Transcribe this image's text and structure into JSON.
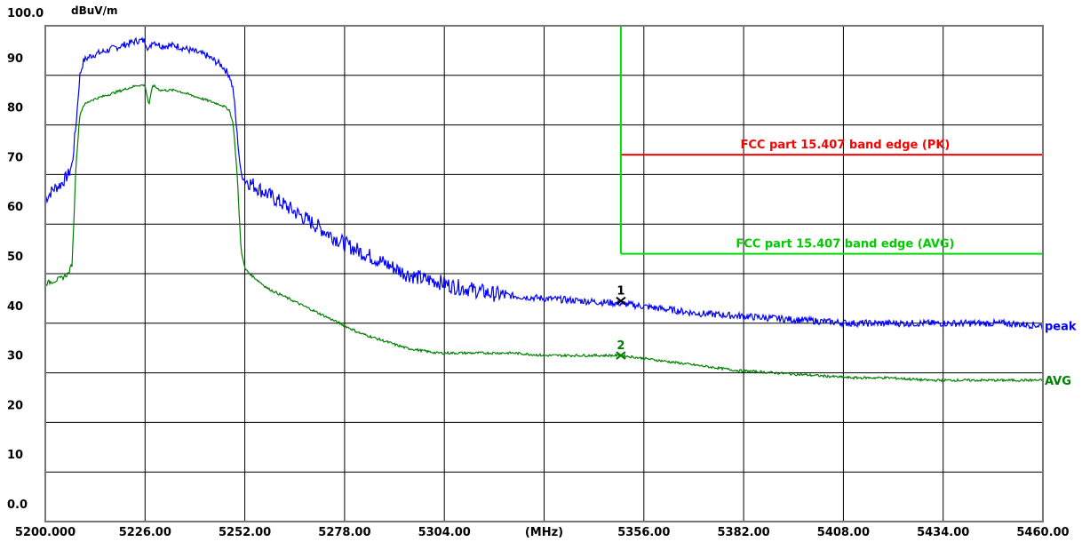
{
  "chart_data": {
    "type": "line",
    "ylabel": "dBuV/m",
    "xunit": "(MHz)",
    "xlim": [
      5200,
      5460
    ],
    "ylim": [
      0,
      100
    ],
    "grid": true,
    "y_ticks": [
      "0.0",
      "10",
      "20",
      "30",
      "40",
      "50",
      "60",
      "70",
      "80",
      "90",
      "100.0"
    ],
    "x_ticks": [
      "5200.000",
      "5226.00",
      "5252.00",
      "5278.00",
      "5304.00",
      "(MHz)",
      "5356.00",
      "5382.00",
      "5408.00",
      "5434.00",
      "5460.00"
    ],
    "limit_lines": [
      {
        "label": "FCC part 15.407 band edge (PK)",
        "color": "#ff0000",
        "x_start": 5350,
        "x_end": 5460,
        "y": 74
      },
      {
        "label": "FCC part 15.407 band edge (AVG)",
        "color": "#00dd00",
        "x_start": 5350,
        "x_end": 5460,
        "y": 54
      },
      {
        "label": "",
        "color": "#00dd00",
        "x_start": 5200,
        "x_end": 5350,
        "y": 100
      }
    ],
    "limit_vertical": {
      "x": 5350,
      "y_from": 100,
      "y_to": 54,
      "color": "#00dd00"
    },
    "series": [
      {
        "name": "peak",
        "color": "#0000ff",
        "x": [
          5200,
          5202,
          5204,
          5206,
          5207,
          5208,
          5209,
          5210,
          5212,
          5216,
          5220,
          5224,
          5226,
          5227,
          5228,
          5230,
          5234,
          5238,
          5242,
          5246,
          5248,
          5249,
          5250,
          5251,
          5252,
          5254,
          5258,
          5262,
          5266,
          5270,
          5274,
          5278,
          5282,
          5286,
          5290,
          5294,
          5298,
          5302,
          5306,
          5310,
          5316,
          5322,
          5330,
          5340,
          5350,
          5360,
          5370,
          5380,
          5390,
          5400,
          5410,
          5420,
          5430,
          5440,
          5450,
          5460
        ],
        "y": [
          65,
          67,
          68,
          70,
          72,
          80,
          90,
          93,
          94,
          95,
          96,
          97,
          97,
          95,
          97,
          96,
          96,
          95,
          94,
          92,
          90,
          87,
          78,
          70,
          69,
          68,
          66,
          64,
          62,
          60,
          58,
          56,
          54.5,
          53,
          51.5,
          50,
          49,
          48.5,
          47.5,
          47,
          46,
          45.5,
          45,
          44.5,
          44,
          43,
          42,
          41.5,
          41,
          40.5,
          40,
          40,
          40,
          40,
          40,
          39.5
        ]
      },
      {
        "name": "AVG",
        "color": "#008000",
        "x": [
          5200,
          5202,
          5204,
          5206,
          5207,
          5208,
          5209,
          5210,
          5212,
          5216,
          5220,
          5224,
          5226,
          5227,
          5228,
          5230,
          5234,
          5238,
          5242,
          5246,
          5248,
          5249,
          5250,
          5251,
          5252,
          5254,
          5258,
          5262,
          5266,
          5270,
          5274,
          5278,
          5282,
          5286,
          5290,
          5294,
          5298,
          5302,
          5306,
          5310,
          5316,
          5322,
          5330,
          5340,
          5350,
          5360,
          5370,
          5380,
          5390,
          5400,
          5410,
          5420,
          5430,
          5440,
          5450,
          5460
        ],
        "y": [
          48,
          48.5,
          49,
          50,
          52,
          72,
          82,
          84,
          85,
          86,
          87,
          88,
          88,
          84,
          88,
          87,
          87,
          86,
          85,
          84,
          83,
          80,
          70,
          55,
          51,
          49.5,
          47,
          45.5,
          44,
          42.5,
          41,
          39.5,
          38,
          37,
          36,
          35,
          34.5,
          34,
          34,
          34,
          34,
          34,
          33.5,
          33.5,
          33.5,
          32.5,
          31.5,
          30.5,
          30,
          29.5,
          29,
          29,
          28.5,
          28.5,
          28.5,
          28.5
        ]
      }
    ],
    "markers": [
      {
        "label": "1",
        "x": 5350,
        "y": 44.5,
        "color": "#000000"
      },
      {
        "label": "2",
        "x": 5350,
        "y": 33.5,
        "color": "#008000"
      }
    ]
  }
}
